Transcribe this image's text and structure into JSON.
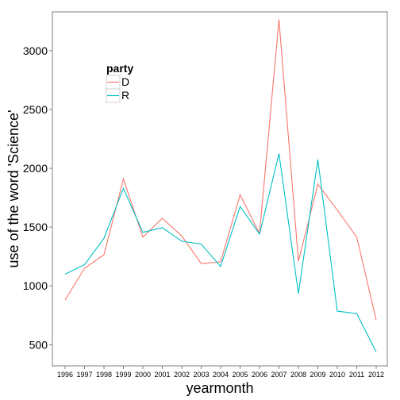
{
  "chart_data": {
    "type": "line",
    "xlabel": "yearmonth",
    "ylabel": "use of the word 'Science'",
    "x": [
      "1996",
      "1997",
      "1998",
      "1999",
      "2000",
      "2001",
      "2002",
      "2003",
      "2004",
      "2005",
      "2006",
      "2007",
      "2008",
      "2009",
      "2010",
      "2011",
      "2012"
    ],
    "yticks": [
      500,
      1000,
      1500,
      2000,
      2500,
      3000
    ],
    "ylim": [
      320,
      3330
    ],
    "grid": false,
    "legend": {
      "title": "party",
      "placement": "top-left"
    },
    "series": [
      {
        "name": "D",
        "color": "#F8766D",
        "values": [
          880,
          1150,
          1265,
          1910,
          1415,
          1575,
          1425,
          1190,
          1205,
          1775,
          1445,
          3265,
          1210,
          1865,
          1645,
          1415,
          710
        ]
      },
      {
        "name": "R",
        "color": "#00BFC4",
        "values": [
          1100,
          1180,
          1405,
          1830,
          1455,
          1495,
          1380,
          1355,
          1165,
          1675,
          1440,
          2125,
          935,
          2075,
          785,
          765,
          440
        ]
      }
    ]
  }
}
